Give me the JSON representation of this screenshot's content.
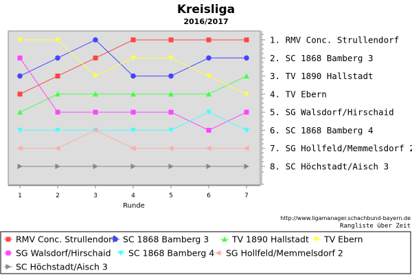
{
  "chart_data": {
    "type": "line",
    "title": "Kreisliga",
    "subtitle": "2016/2017",
    "xlabel": "Runde",
    "ylabel": "",
    "x": [
      1,
      2,
      3,
      4,
      5,
      6,
      7
    ],
    "ylim": [
      1,
      8
    ],
    "y_reversed": true,
    "grid": false,
    "legend_position": "bottom",
    "source_url": "http://www.ligamanager.schachbund-bayern.de",
    "caption": "Rangliste über Zeit",
    "ranking_labels": [
      "1. RMV Conc. Strullendorf",
      "2. SC 1868 Bamberg 3",
      "3. TV 1890 Hallstadt",
      "4. TV Ebern",
      "5. SG Walsdorf/Hirschaid",
      "6. SC 1868 Bamberg 4",
      "7. SG Hollfeld/Memmelsdorf 2",
      "8. SC Höchstadt/Aisch 3"
    ],
    "series": [
      {
        "name": "RMV Conc. Strullendorf",
        "values": [
          4,
          3,
          2,
          1,
          1,
          1,
          1
        ],
        "color": "#ff4444",
        "marker": "square"
      },
      {
        "name": "SC 1868 Bamberg 3",
        "values": [
          3,
          2,
          1,
          3,
          3,
          2,
          2
        ],
        "color": "#4444ff",
        "marker": "circle"
      },
      {
        "name": "TV 1890 Hallstadt",
        "values": [
          5,
          4,
          4,
          4,
          4,
          4,
          3
        ],
        "color": "#44ff44",
        "marker": "triangle-up"
      },
      {
        "name": "TV Ebern",
        "values": [
          1,
          1,
          3,
          2,
          2,
          3,
          4
        ],
        "color": "#ffff44",
        "marker": "triangle-down"
      },
      {
        "name": "SG Walsdorf/Hirschaid",
        "values": [
          2,
          5,
          5,
          5,
          5,
          6,
          5
        ],
        "color": "#ff44ff",
        "marker": "square"
      },
      {
        "name": "SC 1868 Bamberg 4",
        "values": [
          6,
          6,
          6,
          6,
          6,
          5,
          6
        ],
        "color": "#44ffff",
        "marker": "triangle-down"
      },
      {
        "name": "SG Hollfeld/Memmelsdorf 2",
        "values": [
          7,
          7,
          6,
          7,
          7,
          7,
          7
        ],
        "color": "#ffaaaa",
        "marker": "triangle-left"
      },
      {
        "name": "SC Höchstadt/Aisch 3",
        "values": [
          8,
          8,
          8,
          8,
          8,
          8,
          8
        ],
        "color": "#888888",
        "marker": "triangle-right"
      }
    ]
  }
}
